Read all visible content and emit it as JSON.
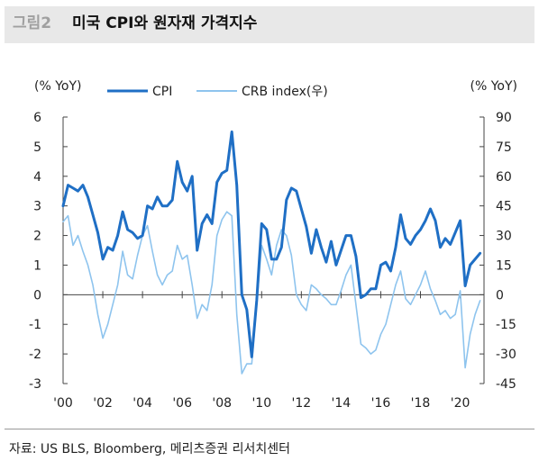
{
  "header": {
    "figure_label": "그림2",
    "title": "미국 CPI와 원자재 가격지수"
  },
  "source": "자료: US BLS, Bloomberg, 메리츠증권 리서치센터",
  "chart_data": {
    "type": "line",
    "title": "미국 CPI와 원자재 가격지수",
    "ylabel_left": "(% YoY)",
    "ylabel_right": "(% YoY)",
    "ylim_left": [
      -3,
      6
    ],
    "ylim_right": [
      -45,
      90
    ],
    "yticks_left": [
      "6",
      "5",
      "4",
      "3",
      "2",
      "1",
      "0",
      "-1",
      "-2",
      "-3"
    ],
    "yticks_right": [
      "90",
      "75",
      "60",
      "45",
      "30",
      "15",
      "0",
      "-15",
      "-30",
      "-45"
    ],
    "xticks": [
      "'00",
      "'02",
      "'04",
      "'06",
      "'08",
      "'10",
      "'12",
      "'14",
      "'16",
      "'18",
      "'20"
    ],
    "xlim": [
      2000,
      2021.2
    ],
    "grid": false,
    "legend_position": "top",
    "series": [
      {
        "name": "CPI",
        "axis": "left",
        "color": "#1f6fc5",
        "points": [
          [
            2000.0,
            3.0
          ],
          [
            2000.25,
            3.7
          ],
          [
            2000.5,
            3.6
          ],
          [
            2000.75,
            3.5
          ],
          [
            2001.0,
            3.7
          ],
          [
            2001.25,
            3.3
          ],
          [
            2001.5,
            2.7
          ],
          [
            2001.75,
            2.1
          ],
          [
            2002.0,
            1.2
          ],
          [
            2002.25,
            1.6
          ],
          [
            2002.5,
            1.5
          ],
          [
            2002.75,
            2.0
          ],
          [
            2003.0,
            2.8
          ],
          [
            2003.25,
            2.2
          ],
          [
            2003.5,
            2.1
          ],
          [
            2003.75,
            1.9
          ],
          [
            2004.0,
            2.0
          ],
          [
            2004.25,
            3.0
          ],
          [
            2004.5,
            2.9
          ],
          [
            2004.75,
            3.3
          ],
          [
            2005.0,
            3.0
          ],
          [
            2005.25,
            3.0
          ],
          [
            2005.5,
            3.2
          ],
          [
            2005.75,
            4.5
          ],
          [
            2006.0,
            3.8
          ],
          [
            2006.25,
            3.5
          ],
          [
            2006.5,
            4.0
          ],
          [
            2006.75,
            1.5
          ],
          [
            2007.0,
            2.4
          ],
          [
            2007.25,
            2.7
          ],
          [
            2007.5,
            2.4
          ],
          [
            2007.75,
            3.8
          ],
          [
            2008.0,
            4.1
          ],
          [
            2008.25,
            4.2
          ],
          [
            2008.5,
            5.5
          ],
          [
            2008.75,
            3.7
          ],
          [
            2009.0,
            0.0
          ],
          [
            2009.25,
            -0.5
          ],
          [
            2009.5,
            -2.1
          ],
          [
            2009.75,
            -0.2
          ],
          [
            2010.0,
            2.4
          ],
          [
            2010.25,
            2.2
          ],
          [
            2010.5,
            1.2
          ],
          [
            2010.75,
            1.2
          ],
          [
            2011.0,
            1.6
          ],
          [
            2011.25,
            3.2
          ],
          [
            2011.5,
            3.6
          ],
          [
            2011.75,
            3.5
          ],
          [
            2012.0,
            2.9
          ],
          [
            2012.25,
            2.3
          ],
          [
            2012.5,
            1.4
          ],
          [
            2012.75,
            2.2
          ],
          [
            2013.0,
            1.6
          ],
          [
            2013.25,
            1.1
          ],
          [
            2013.5,
            1.8
          ],
          [
            2013.75,
            1.0
          ],
          [
            2014.0,
            1.5
          ],
          [
            2014.25,
            2.0
          ],
          [
            2014.5,
            2.0
          ],
          [
            2014.75,
            1.3
          ],
          [
            2015.0,
            -0.1
          ],
          [
            2015.25,
            0.0
          ],
          [
            2015.5,
            0.2
          ],
          [
            2015.75,
            0.2
          ],
          [
            2016.0,
            1.0
          ],
          [
            2016.25,
            1.1
          ],
          [
            2016.5,
            0.8
          ],
          [
            2016.75,
            1.6
          ],
          [
            2017.0,
            2.7
          ],
          [
            2017.25,
            1.9
          ],
          [
            2017.5,
            1.7
          ],
          [
            2017.75,
            2.0
          ],
          [
            2018.0,
            2.2
          ],
          [
            2018.25,
            2.5
          ],
          [
            2018.5,
            2.9
          ],
          [
            2018.75,
            2.5
          ],
          [
            2019.0,
            1.6
          ],
          [
            2019.25,
            1.9
          ],
          [
            2019.5,
            1.7
          ],
          [
            2019.75,
            2.1
          ],
          [
            2020.0,
            2.5
          ],
          [
            2020.25,
            0.3
          ],
          [
            2020.5,
            1.0
          ],
          [
            2020.75,
            1.2
          ],
          [
            2021.0,
            1.4
          ]
        ]
      },
      {
        "name": "CRB index(우)",
        "axis": "right",
        "color": "#8ec4ee",
        "points": [
          [
            2000.0,
            37
          ],
          [
            2000.25,
            40
          ],
          [
            2000.5,
            25
          ],
          [
            2000.75,
            30
          ],
          [
            2001.0,
            22
          ],
          [
            2001.25,
            15
          ],
          [
            2001.5,
            5
          ],
          [
            2001.75,
            -10
          ],
          [
            2002.0,
            -22
          ],
          [
            2002.25,
            -15
          ],
          [
            2002.5,
            -5
          ],
          [
            2002.75,
            5
          ],
          [
            2003.0,
            22
          ],
          [
            2003.25,
            10
          ],
          [
            2003.5,
            8
          ],
          [
            2003.75,
            20
          ],
          [
            2004.0,
            30
          ],
          [
            2004.25,
            35
          ],
          [
            2004.5,
            22
          ],
          [
            2004.75,
            10
          ],
          [
            2005.0,
            5
          ],
          [
            2005.25,
            10
          ],
          [
            2005.5,
            12
          ],
          [
            2005.75,
            25
          ],
          [
            2006.0,
            18
          ],
          [
            2006.25,
            20
          ],
          [
            2006.5,
            5
          ],
          [
            2006.75,
            -12
          ],
          [
            2007.0,
            -5
          ],
          [
            2007.25,
            -8
          ],
          [
            2007.5,
            5
          ],
          [
            2007.75,
            30
          ],
          [
            2008.0,
            38
          ],
          [
            2008.25,
            42
          ],
          [
            2008.5,
            40
          ],
          [
            2008.75,
            -10
          ],
          [
            2009.0,
            -40
          ],
          [
            2009.25,
            -35
          ],
          [
            2009.5,
            -35
          ],
          [
            2009.75,
            -5
          ],
          [
            2010.0,
            25
          ],
          [
            2010.25,
            18
          ],
          [
            2010.5,
            10
          ],
          [
            2010.75,
            25
          ],
          [
            2011.0,
            33
          ],
          [
            2011.25,
            30
          ],
          [
            2011.5,
            20
          ],
          [
            2011.75,
            0
          ],
          [
            2012.0,
            -5
          ],
          [
            2012.25,
            -8
          ],
          [
            2012.5,
            5
          ],
          [
            2012.75,
            3
          ],
          [
            2013.0,
            0
          ],
          [
            2013.25,
            -2
          ],
          [
            2013.5,
            -5
          ],
          [
            2013.75,
            -5
          ],
          [
            2014.0,
            2
          ],
          [
            2014.25,
            10
          ],
          [
            2014.5,
            15
          ],
          [
            2014.75,
            -5
          ],
          [
            2015.0,
            -25
          ],
          [
            2015.25,
            -27
          ],
          [
            2015.5,
            -30
          ],
          [
            2015.75,
            -28
          ],
          [
            2016.0,
            -20
          ],
          [
            2016.25,
            -15
          ],
          [
            2016.5,
            -5
          ],
          [
            2016.75,
            5
          ],
          [
            2017.0,
            12
          ],
          [
            2017.25,
            -2
          ],
          [
            2017.5,
            -5
          ],
          [
            2017.75,
            0
          ],
          [
            2018.0,
            5
          ],
          [
            2018.25,
            12
          ],
          [
            2018.5,
            3
          ],
          [
            2018.75,
            -3
          ],
          [
            2019.0,
            -10
          ],
          [
            2019.25,
            -8
          ],
          [
            2019.5,
            -12
          ],
          [
            2019.75,
            -10
          ],
          [
            2020.0,
            2
          ],
          [
            2020.25,
            -37
          ],
          [
            2020.5,
            -20
          ],
          [
            2020.75,
            -10
          ],
          [
            2021.0,
            -3
          ]
        ]
      }
    ]
  }
}
